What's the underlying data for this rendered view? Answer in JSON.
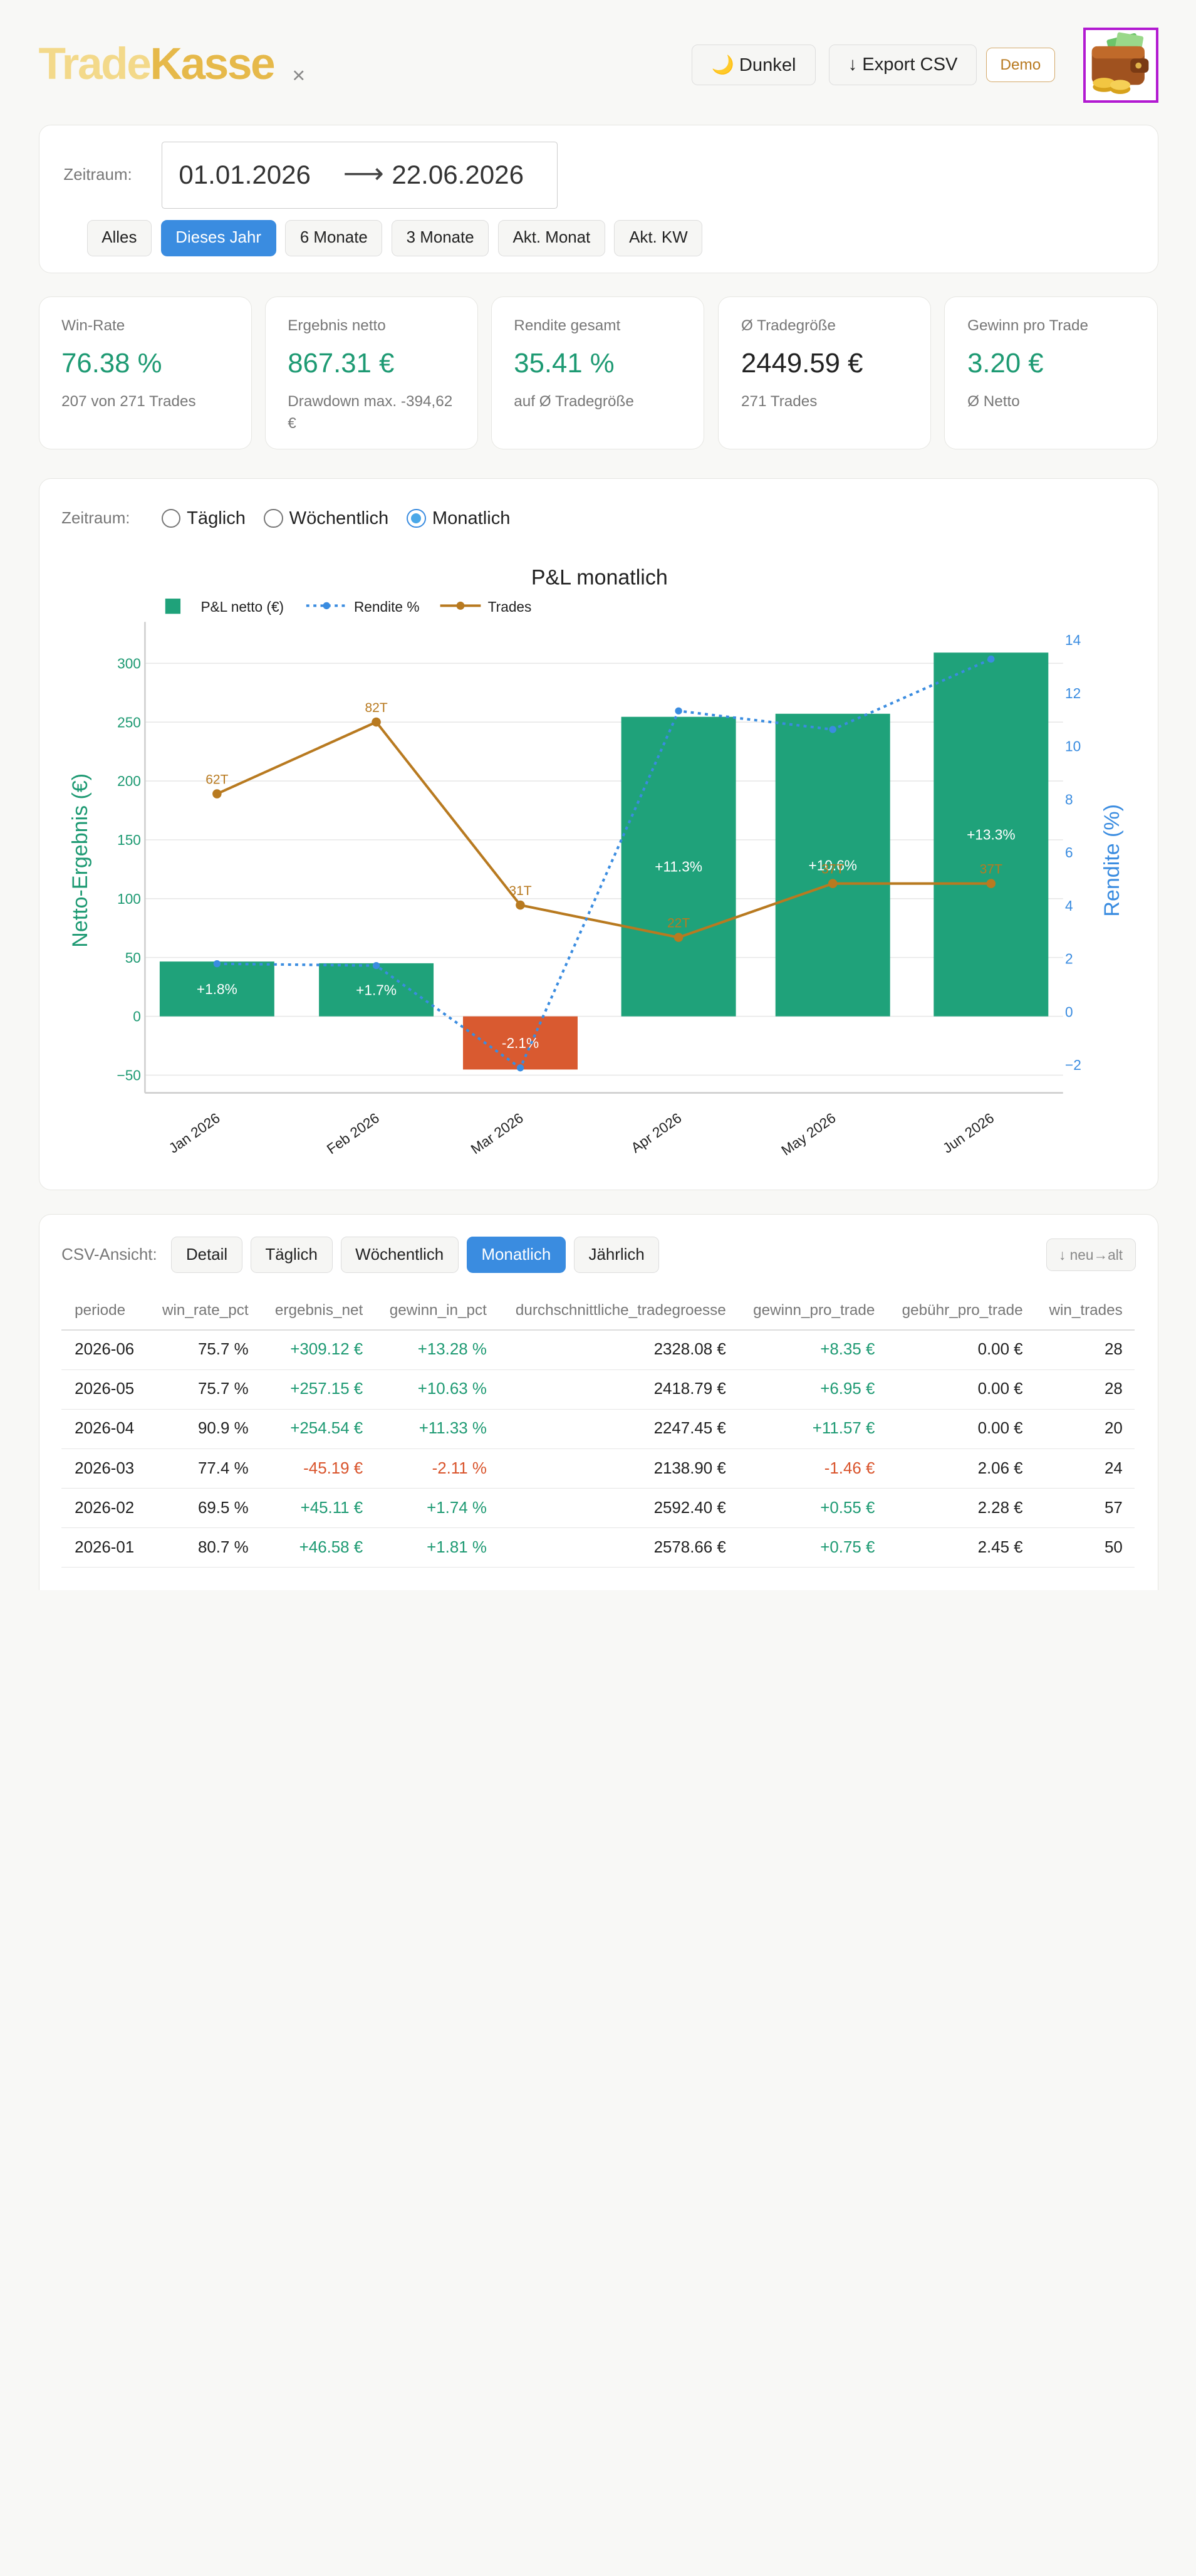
{
  "header": {
    "brand_part1": "Trade",
    "brand_part2": "Kasse",
    "close_symbol": "×",
    "dark_label": "🌙 Dunkel",
    "export_label": "↓ Export CSV",
    "demo_label": "Demo",
    "logo_icon": "wallet-coins-icon"
  },
  "range": {
    "label": "Zeitraum:",
    "from": "01.01.2026",
    "arrow": "⟶",
    "to": "22.06.2026",
    "presets": [
      {
        "label": "Alles",
        "active": false
      },
      {
        "label": "Dieses Jahr",
        "active": true
      },
      {
        "label": "6 Monate",
        "active": false
      },
      {
        "label": "3 Monate",
        "active": false
      },
      {
        "label": "Akt. Monat",
        "active": false
      },
      {
        "label": "Akt. KW",
        "active": false
      }
    ]
  },
  "kpis": [
    {
      "label": "Win-Rate",
      "value": "76.38 %",
      "sub": "207 von 271 Trades",
      "color": "#1e9a73"
    },
    {
      "label": "Ergebnis netto",
      "value": "867.31 €",
      "sub": "Drawdown max. -394,62 €",
      "color": "#1e9a73"
    },
    {
      "label": "Rendite gesamt",
      "value": "35.41 %",
      "sub": "auf Ø Tradegröße",
      "color": "#1e9a73"
    },
    {
      "label": "Ø Tradegröße",
      "value": "2449.59 €",
      "sub": "271 Trades",
      "color": "#222222"
    },
    {
      "label": "Gewinn pro Trade",
      "value": "3.20 €",
      "sub": "Ø Netto",
      "color": "#1e9a73"
    }
  ],
  "granularity": {
    "label": "Zeitraum:",
    "options": [
      "Täglich",
      "Wöchentlich",
      "Monatlich"
    ],
    "selected": "Monatlich"
  },
  "chart_data": {
    "type": "bar",
    "title": "P&L monatlich",
    "categories": [
      "Jan 2026",
      "Feb 2026",
      "Mar 2026",
      "Apr 2026",
      "May 2026",
      "Jun 2026"
    ],
    "series": [
      {
        "name": "P&L netto (€)",
        "type": "bar",
        "axis": "left",
        "values": [
          46.58,
          45.11,
          -45.19,
          254.54,
          257.15,
          309.12
        ],
        "labels": [
          "+1.8%",
          "+1.7%",
          "-2.1%",
          "+11.3%",
          "+10.6%",
          "+13.3%"
        ],
        "color_pos": "#1fa27a",
        "color_neg": "#d95a30"
      },
      {
        "name": "Rendite %",
        "type": "line",
        "style": "dotted",
        "axis": "right",
        "values": [
          1.81,
          1.74,
          -2.11,
          11.33,
          10.63,
          13.28
        ],
        "color": "#3a8ce0"
      },
      {
        "name": "Trades",
        "type": "line",
        "axis": "left-scaled",
        "values": [
          62,
          82,
          31,
          22,
          37,
          37
        ],
        "labels": [
          "62T",
          "82T",
          "31T",
          "22T",
          "37T",
          "37T"
        ],
        "color": "#b87a20"
      }
    ],
    "ylabel": "Netto-Ergebnis (€)",
    "ylabel_right": "Rendite (%)",
    "ylim": [
      -65,
      330
    ],
    "y_ticks": [
      "300",
      "250",
      "200",
      "150",
      "100",
      "50",
      "0",
      "−50"
    ],
    "ylim_right": [
      -3.05,
      14.45
    ],
    "y_ticks_right": [
      "14",
      "12",
      "10",
      "8",
      "6",
      "4",
      "2",
      "0",
      "−2"
    ],
    "grid": true,
    "legend": "top-left"
  },
  "csv": {
    "label": "CSV-Ansicht:",
    "views": [
      {
        "label": "Detail",
        "active": false
      },
      {
        "label": "Täglich",
        "active": false
      },
      {
        "label": "Wöchentlich",
        "active": false
      },
      {
        "label": "Monatlich",
        "active": true
      },
      {
        "label": "Jährlich",
        "active": false
      }
    ],
    "sort_label": "↓ neu→alt",
    "columns": [
      "periode",
      "win_rate_pct",
      "ergebnis_net",
      "gewinn_in_pct",
      "durchschnittliche_tradegroesse",
      "gewinn_pro_trade",
      "gebühr_pro_trade",
      "win_trades"
    ],
    "rows": [
      [
        "2026-06",
        "75.7 %",
        "+309.12 €",
        "+13.28 %",
        "2328.08 €",
        "+8.35 €",
        "0.00 €",
        "28"
      ],
      [
        "2026-05",
        "75.7 %",
        "+257.15 €",
        "+10.63 %",
        "2418.79 €",
        "+6.95 €",
        "0.00 €",
        "28"
      ],
      [
        "2026-04",
        "90.9 %",
        "+254.54 €",
        "+11.33 %",
        "2247.45 €",
        "+11.57 €",
        "0.00 €",
        "20"
      ],
      [
        "2026-03",
        "77.4 %",
        "-45.19 €",
        "-2.11 %",
        "2138.90 €",
        "-1.46 €",
        "2.06 €",
        "24"
      ],
      [
        "2026-02",
        "69.5 %",
        "+45.11 €",
        "+1.74 %",
        "2592.40 €",
        "+0.55 €",
        "2.28 €",
        "57"
      ],
      [
        "2026-01",
        "80.7 %",
        "+46.58 €",
        "+1.81 %",
        "2578.66 €",
        "+0.75 €",
        "2.45 €",
        "50"
      ]
    ]
  }
}
